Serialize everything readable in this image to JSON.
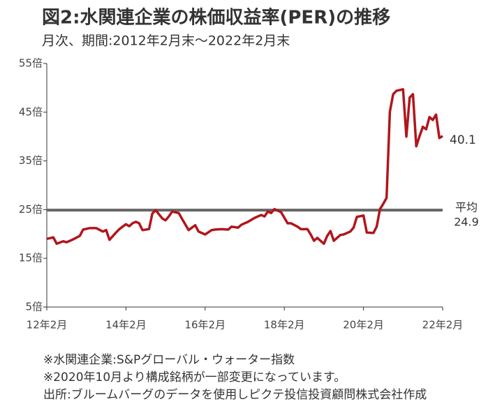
{
  "chart_data": {
    "type": "line",
    "title": "図2:水関連企業の株価収益率(PER)の推移",
    "subtitle": "月次、期間:2012年2月末～2022年2月末",
    "x": [
      "2012-02",
      "2012-04",
      "2012-05",
      "2012-07",
      "2012-08",
      "2012-10",
      "2012-12",
      "2013-01",
      "2013-03",
      "2013-05",
      "2013-07",
      "2013-08",
      "2013-09",
      "2013-11",
      "2013-12",
      "2014-02",
      "2014-03",
      "2014-04",
      "2014-05",
      "2014-06",
      "2014-07",
      "2014-09",
      "2014-10",
      "2014-11",
      "2015-01",
      "2015-02",
      "2015-03",
      "2015-04",
      "2015-06",
      "2015-07",
      "2015-09",
      "2015-11",
      "2015-12",
      "2016-02",
      "2016-04",
      "2016-05",
      "2016-07",
      "2016-09",
      "2016-10",
      "2016-12",
      "2017-01",
      "2017-03",
      "2017-04",
      "2017-05",
      "2017-07",
      "2017-08",
      "2017-09",
      "2017-10",
      "2017-11",
      "2018-01",
      "2018-03",
      "2018-04",
      "2018-06",
      "2018-07",
      "2018-09",
      "2018-10",
      "2018-11",
      "2018-12",
      "2019-02",
      "2019-03",
      "2019-04",
      "2019-05",
      "2019-07",
      "2019-08",
      "2019-10",
      "2019-11",
      "2019-12",
      "2020-02",
      "2020-03",
      "2020-05",
      "2020-06",
      "2020-07",
      "2020-08",
      "2020-09",
      "2020-10",
      "2020-11",
      "2020-12",
      "2021-02",
      "2021-03",
      "2021-04",
      "2021-05",
      "2021-06",
      "2021-07",
      "2021-08",
      "2021-09",
      "2021-10",
      "2021-11",
      "2021-12",
      "2022-01",
      "2022-02"
    ],
    "values": [
      19.0,
      19.3,
      18.0,
      18.5,
      18.3,
      18.9,
      19.6,
      20.9,
      21.2,
      21.2,
      20.5,
      20.8,
      18.8,
      20.3,
      21.0,
      22.0,
      21.6,
      22.2,
      22.5,
      22.2,
      20.8,
      21.0,
      24.2,
      24.9,
      23.2,
      22.8,
      23.6,
      24.6,
      24.3,
      23.1,
      20.8,
      21.8,
      20.5,
      19.9,
      20.8,
      20.9,
      21.0,
      20.9,
      21.5,
      21.3,
      21.9,
      22.5,
      22.9,
      23.3,
      23.9,
      23.6,
      24.6,
      24.3,
      25.1,
      24.5,
      22.2,
      22.2,
      21.5,
      21.0,
      21.0,
      19.9,
      18.6,
      19.2,
      18.0,
      19.6,
      20.6,
      18.6,
      19.8,
      19.9,
      20.5,
      21.3,
      23.5,
      23.8,
      20.3,
      20.2,
      21.5,
      25.1,
      26.2,
      27.4,
      45.1,
      48.7,
      49.4,
      49.7,
      40.0,
      48.0,
      48.7,
      38.0,
      40.1,
      42.0,
      41.5,
      44.0,
      43.4,
      44.5,
      39.7,
      40.1
    ],
    "color": "#b0161b",
    "average": {
      "label": "平均",
      "value": 24.9,
      "color": "#666666"
    },
    "xlim": [
      "2012-02",
      "2022-02"
    ],
    "xticks": [
      {
        "value": "2012-02",
        "label": "12年2月"
      },
      {
        "value": "2014-02",
        "label": "14年2月"
      },
      {
        "value": "2016-02",
        "label": "16年2月"
      },
      {
        "value": "2018-02",
        "label": "18年2月"
      },
      {
        "value": "2020-02",
        "label": "20年2月"
      },
      {
        "value": "2022-02",
        "label": "22年2月"
      }
    ],
    "ylim": [
      5,
      55
    ],
    "yticks": [
      {
        "value": 5,
        "label": "5倍"
      },
      {
        "value": 15,
        "label": "15倍"
      },
      {
        "value": 25,
        "label": "25倍"
      },
      {
        "value": 35,
        "label": "35倍"
      },
      {
        "value": 45,
        "label": "45倍"
      },
      {
        "value": 55,
        "label": "55倍"
      }
    ],
    "grid": false,
    "notes": [
      "※水関連企業:S&Pグローバル・ウォーター指数",
      "※2020年10月より構成銘柄が一部変更になっています。",
      "出所:ブルームバーグのデータを使用しピクテ投信投資顧問株式会社作成"
    ]
  }
}
